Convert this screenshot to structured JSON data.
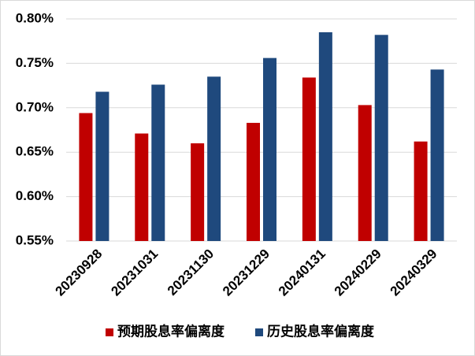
{
  "chart_data": {
    "type": "bar",
    "categories": [
      "20230928",
      "20231031",
      "20231130",
      "20231229",
      "20240131",
      "20240229",
      "20240329"
    ],
    "series": [
      {
        "name": "预期股息率偏离度",
        "color": "#c00000",
        "values": [
          0.694,
          0.671,
          0.66,
          0.683,
          0.734,
          0.703,
          0.662
        ]
      },
      {
        "name": "历史股息率偏离度",
        "color": "#1f497d",
        "values": [
          0.718,
          0.726,
          0.735,
          0.756,
          0.785,
          0.782,
          0.743
        ]
      }
    ],
    "ylim": [
      0.55,
      0.8
    ],
    "yticks": [
      {
        "value": 0.55,
        "label": "0.55%"
      },
      {
        "value": 0.6,
        "label": "0.60%"
      },
      {
        "value": 0.65,
        "label": "0.65%"
      },
      {
        "value": 0.7,
        "label": "0.70%"
      },
      {
        "value": 0.75,
        "label": "0.75%"
      },
      {
        "value": 0.8,
        "label": "0.80%"
      }
    ],
    "grid": true,
    "legend": "bottom"
  }
}
